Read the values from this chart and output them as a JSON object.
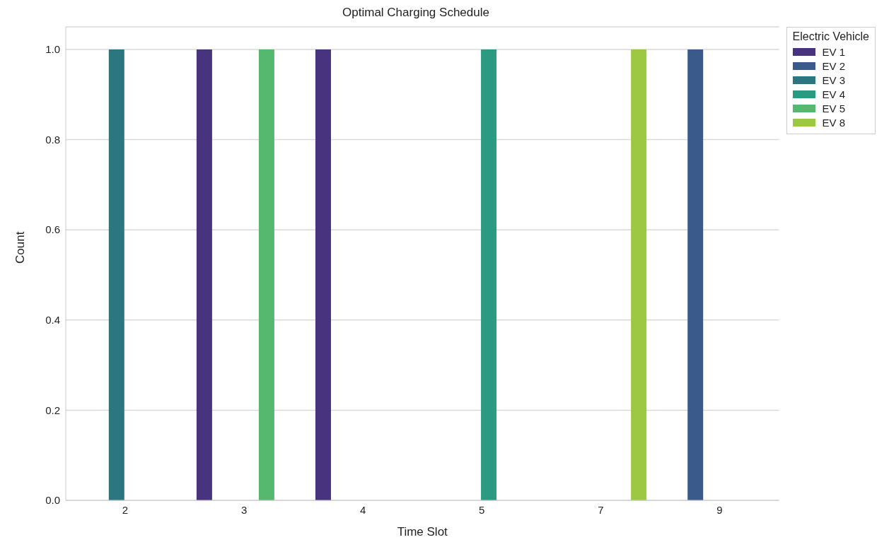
{
  "chart_data": {
    "type": "bar",
    "title": "Optimal Charging Schedule",
    "xlabel": "Time Slot",
    "ylabel": "Count",
    "categories": [
      "2",
      "3",
      "4",
      "5",
      "7",
      "9"
    ],
    "series": [
      {
        "name": "EV 1",
        "color": "#47337e",
        "values": [
          null,
          1,
          1,
          null,
          null,
          null
        ]
      },
      {
        "name": "EV 2",
        "color": "#3a5a8c",
        "values": [
          null,
          null,
          null,
          null,
          null,
          1
        ]
      },
      {
        "name": "EV 3",
        "color": "#2c7680",
        "values": [
          1,
          null,
          null,
          null,
          null,
          null
        ]
      },
      {
        "name": "EV 4",
        "color": "#2a9a80",
        "values": [
          null,
          null,
          null,
          1,
          null,
          null
        ]
      },
      {
        "name": "EV 5",
        "color": "#55b86e",
        "values": [
          null,
          1,
          null,
          null,
          null,
          null
        ]
      },
      {
        "name": "EV 8",
        "color": "#9cc843",
        "values": [
          null,
          null,
          null,
          null,
          1,
          null
        ]
      }
    ],
    "ylim": [
      0,
      1.05
    ],
    "yticks": [
      {
        "value": 0,
        "label": "0.0"
      },
      {
        "value": 0.2,
        "label": "0.2"
      },
      {
        "value": 0.4,
        "label": "0.4"
      },
      {
        "value": 0.6,
        "label": "0.6"
      },
      {
        "value": 0.8,
        "label": "0.8"
      },
      {
        "value": 1,
        "label": "1.0"
      }
    ],
    "grid": "y",
    "legend": "top right",
    "legend_title": "Electric Vehicle"
  }
}
